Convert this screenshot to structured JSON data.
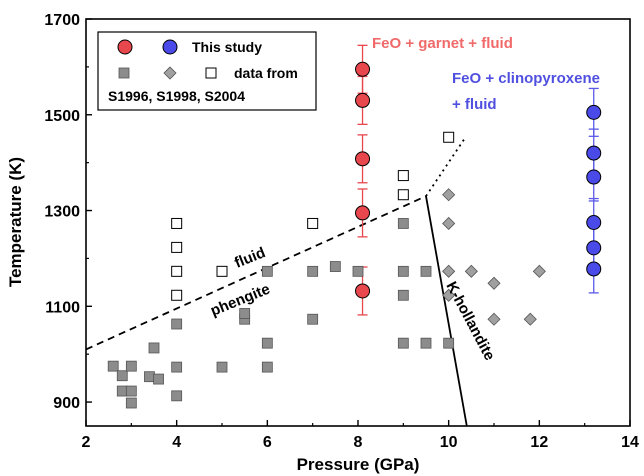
{
  "chart_data": {
    "type": "scatter",
    "xlabel": "Pressure (GPa)",
    "ylabel": "Temperature (K)",
    "xlim": [
      2,
      14
    ],
    "ylim": [
      850,
      1700
    ],
    "xticks": [
      2,
      4,
      6,
      8,
      10,
      12,
      14
    ],
    "yticks": [
      900,
      1100,
      1300,
      1500,
      1700
    ],
    "grid": false,
    "legend": {
      "placement": "top-left",
      "this_study_label": "This study",
      "data_from_label": "data from",
      "references": "S1996, S1998, S2004"
    },
    "colors": {
      "red_fill": "#e8474e",
      "blue_fill": "#4a4ae8",
      "red_error": "#e8474e",
      "blue_error": "#5a5ae8",
      "red_text": "#f06a6a",
      "blue_text": "#5050e0",
      "gray_square": "#8c8c8c",
      "gray_diamond": "#a0a0a0"
    },
    "series": [
      {
        "name": "This study",
        "marker": "red-circle",
        "points": [
          {
            "x": 8.1,
            "y": 1595,
            "err": 50
          },
          {
            "x": 8.1,
            "y": 1530,
            "err": 50
          },
          {
            "x": 8.1,
            "y": 1408,
            "err": 50
          },
          {
            "x": 8.1,
            "y": 1295,
            "err": 50
          },
          {
            "x": 8.1,
            "y": 1132,
            "err": 50
          }
        ]
      },
      {
        "name": "This study",
        "marker": "blue-circle",
        "points": [
          {
            "x": 13.2,
            "y": 1505,
            "err": 50
          },
          {
            "x": 13.2,
            "y": 1420,
            "err": 50
          },
          {
            "x": 13.2,
            "y": 1370,
            "err": 50
          },
          {
            "x": 13.2,
            "y": 1275,
            "err": 50
          },
          {
            "x": 13.2,
            "y": 1222,
            "err": 50
          },
          {
            "x": 13.2,
            "y": 1178,
            "err": 50
          }
        ]
      },
      {
        "name": "data from",
        "marker": "gray-square",
        "points": [
          {
            "x": 2.6,
            "y": 975
          },
          {
            "x": 2.8,
            "y": 955
          },
          {
            "x": 2.8,
            "y": 923
          },
          {
            "x": 3.0,
            "y": 975
          },
          {
            "x": 3.0,
            "y": 923
          },
          {
            "x": 3.0,
            "y": 898
          },
          {
            "x": 3.4,
            "y": 953
          },
          {
            "x": 3.5,
            "y": 1013
          },
          {
            "x": 3.6,
            "y": 948
          },
          {
            "x": 4.0,
            "y": 1063
          },
          {
            "x": 4.0,
            "y": 973
          },
          {
            "x": 4.0,
            "y": 913
          },
          {
            "x": 5.0,
            "y": 973
          },
          {
            "x": 5.5,
            "y": 1073
          },
          {
            "x": 5.5,
            "y": 1085
          },
          {
            "x": 6.0,
            "y": 1173
          },
          {
            "x": 6.0,
            "y": 1023
          },
          {
            "x": 6.0,
            "y": 973
          },
          {
            "x": 7.0,
            "y": 1173
          },
          {
            "x": 7.0,
            "y": 1073
          },
          {
            "x": 7.5,
            "y": 1183
          },
          {
            "x": 8.0,
            "y": 1173
          },
          {
            "x": 9.0,
            "y": 1273
          },
          {
            "x": 9.0,
            "y": 1173
          },
          {
            "x": 9.0,
            "y": 1123
          },
          {
            "x": 9.0,
            "y": 1023
          },
          {
            "x": 9.5,
            "y": 1173
          },
          {
            "x": 9.5,
            "y": 1023
          },
          {
            "x": 10.0,
            "y": 1023
          }
        ]
      },
      {
        "name": "data from",
        "marker": "gray-diamond",
        "points": [
          {
            "x": 10.0,
            "y": 1333
          },
          {
            "x": 10.0,
            "y": 1273
          },
          {
            "x": 10.0,
            "y": 1173
          },
          {
            "x": 10.0,
            "y": 1123
          },
          {
            "x": 10.5,
            "y": 1173
          },
          {
            "x": 11.0,
            "y": 1148
          },
          {
            "x": 11.0,
            "y": 1073
          },
          {
            "x": 11.8,
            "y": 1073
          },
          {
            "x": 12.0,
            "y": 1173
          }
        ]
      },
      {
        "name": "data from",
        "marker": "open-square",
        "points": [
          {
            "x": 4.0,
            "y": 1273
          },
          {
            "x": 4.0,
            "y": 1223
          },
          {
            "x": 4.0,
            "y": 1173
          },
          {
            "x": 4.0,
            "y": 1123
          },
          {
            "x": 5.0,
            "y": 1173
          },
          {
            "x": 7.0,
            "y": 1273
          },
          {
            "x": 9.0,
            "y": 1373
          },
          {
            "x": 9.0,
            "y": 1333
          },
          {
            "x": 10.0,
            "y": 1453
          }
        ]
      }
    ],
    "lines": [
      {
        "name": "fluid-phengite-boundary",
        "style": "dashed",
        "points": [
          [
            2.0,
            1010
          ],
          [
            9.5,
            1330
          ]
        ]
      },
      {
        "name": "fluid-phengite-extension",
        "style": "dotted",
        "points": [
          [
            9.5,
            1330
          ],
          [
            10.35,
            1450
          ]
        ]
      },
      {
        "name": "k-hollandite-boundary",
        "style": "solid",
        "points": [
          [
            9.5,
            1330
          ],
          [
            10.4,
            850
          ]
        ]
      }
    ],
    "annotations": {
      "fluid": "fluid",
      "phengite": "phengite",
      "k_hollandite": "K-hollandite",
      "garnet_field": "FeO + garnet + fluid",
      "cpx_field_line1": "FeO + clinopyroxene",
      "cpx_field_line2": "+ fluid"
    }
  }
}
